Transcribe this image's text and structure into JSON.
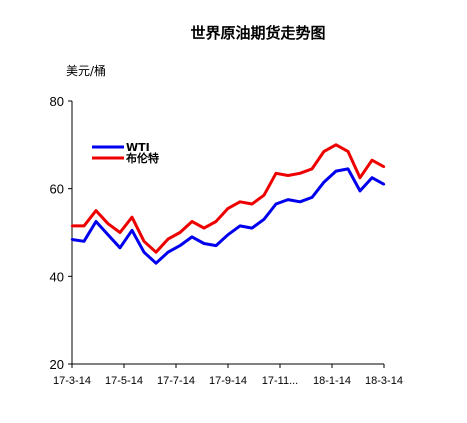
{
  "chart_data": {
    "type": "line",
    "title": "世界原油期货走势图",
    "ylabel": "美元/桶",
    "xlabel": "",
    "ylim": [
      20,
      80
    ],
    "yticks": [
      20,
      40,
      60,
      80
    ],
    "x_ticks": [
      "17-3-14",
      "17-5-14",
      "17-7-14",
      "17-9-14",
      "17-11...",
      "18-1-14",
      "18-3-14"
    ],
    "legend_position": "top-left",
    "grid": false,
    "x": [
      "17-3-14",
      "17-3-28",
      "17-4-11",
      "17-4-25",
      "17-5-9",
      "17-5-23",
      "17-6-6",
      "17-6-20",
      "17-7-4",
      "17-7-18",
      "17-8-1",
      "17-8-15",
      "17-8-29",
      "17-9-12",
      "17-9-26",
      "17-10-10",
      "17-10-24",
      "17-11-7",
      "17-11-21",
      "17-12-5",
      "17-12-19",
      "18-1-2",
      "18-1-16",
      "18-1-30",
      "18-2-13",
      "18-2-27",
      "18-3-14"
    ],
    "series": [
      {
        "name": "WTI",
        "color": "#0000ee",
        "values": [
          48.4,
          48.0,
          52.5,
          49.5,
          46.5,
          50.5,
          45.5,
          43.0,
          45.5,
          47.0,
          49.0,
          47.5,
          47.0,
          49.5,
          51.5,
          51.0,
          53.0,
          56.5,
          57.5,
          57.0,
          58.0,
          61.5,
          64.0,
          64.5,
          59.5,
          62.5,
          61.0
        ]
      },
      {
        "name": "布伦特",
        "color": "#ee0000",
        "values": [
          51.5,
          51.5,
          55.0,
          52.0,
          50.0,
          53.5,
          48.0,
          45.5,
          48.5,
          50.0,
          52.5,
          51.0,
          52.5,
          55.5,
          57.0,
          56.5,
          58.5,
          63.5,
          63.0,
          63.5,
          64.5,
          68.5,
          70.0,
          68.5,
          62.5,
          66.5,
          65.0
        ]
      }
    ]
  }
}
